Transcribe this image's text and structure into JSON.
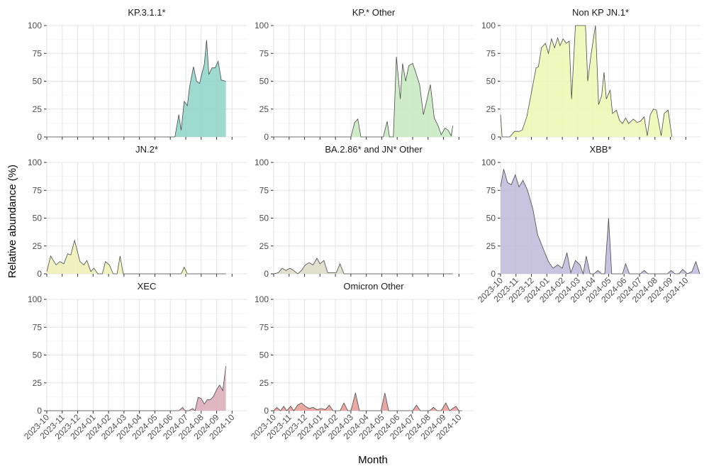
{
  "figure": {
    "ylabel": "Relative abundance (%)",
    "xlabel": "Month"
  },
  "chart_data": {
    "type": "area",
    "facet_layout": "3 columns, 3 rows",
    "ylim": [
      0,
      100
    ],
    "y_ticks": [
      "0",
      "25",
      "50",
      "75",
      "100"
    ],
    "x_ticks": [
      "2023-10",
      "2023-11",
      "2023-12",
      "2024-01",
      "2024-02",
      "2024-03",
      "2024-04",
      "2024-05",
      "2024-06",
      "2024-07",
      "2024-08",
      "2024-09",
      "2024-10"
    ],
    "x_tick_positions": [
      0,
      1,
      2,
      3,
      4,
      5,
      6,
      7,
      8,
      9,
      10,
      11,
      12
    ],
    "xlim": [
      0,
      12.95
    ],
    "grid": true,
    "series": [
      {
        "name": "KP.3.1.1*",
        "color": "#8dd3c7",
        "points": [
          [
            0,
            0
          ],
          [
            8.3,
            0
          ],
          [
            8.55,
            20
          ],
          [
            8.7,
            6
          ],
          [
            8.9,
            32
          ],
          [
            9.1,
            28
          ],
          [
            9.25,
            45
          ],
          [
            9.5,
            63
          ],
          [
            9.7,
            50
          ],
          [
            9.9,
            48
          ],
          [
            10.05,
            57
          ],
          [
            10.2,
            65
          ],
          [
            10.35,
            87
          ],
          [
            10.5,
            56
          ],
          [
            10.7,
            62
          ],
          [
            10.9,
            62
          ],
          [
            11.1,
            68
          ],
          [
            11.3,
            51
          ],
          [
            11.6,
            50
          ]
        ]
      },
      {
        "name": "KP.* Other",
        "color": "#c7e9c0",
        "points": [
          [
            0,
            0
          ],
          [
            5.0,
            0
          ],
          [
            5.25,
            13
          ],
          [
            5.45,
            16
          ],
          [
            5.65,
            0
          ],
          [
            7.1,
            0
          ],
          [
            7.35,
            14
          ],
          [
            7.5,
            0
          ],
          [
            7.75,
            0
          ],
          [
            7.95,
            72
          ],
          [
            8.2,
            34
          ],
          [
            8.35,
            66
          ],
          [
            8.55,
            50
          ],
          [
            8.75,
            64
          ],
          [
            9.0,
            66
          ],
          [
            9.2,
            58
          ],
          [
            9.45,
            47
          ],
          [
            9.7,
            20
          ],
          [
            9.95,
            35
          ],
          [
            10.15,
            47
          ],
          [
            10.4,
            17
          ],
          [
            10.65,
            10
          ],
          [
            10.85,
            2
          ],
          [
            11.1,
            8
          ],
          [
            11.3,
            6
          ],
          [
            11.5,
            1
          ],
          [
            11.6,
            10
          ]
        ]
      },
      {
        "name": "Non KP JN.1*",
        "color": "#edf8b1",
        "points": [
          [
            0,
            20
          ],
          [
            0.1,
            0
          ],
          [
            0.6,
            0
          ],
          [
            0.9,
            5
          ],
          [
            1.2,
            5
          ],
          [
            1.4,
            6
          ],
          [
            1.7,
            18
          ],
          [
            2.0,
            40
          ],
          [
            2.3,
            62
          ],
          [
            2.45,
            63
          ],
          [
            2.65,
            80
          ],
          [
            2.9,
            84
          ],
          [
            3.1,
            75
          ],
          [
            3.3,
            88
          ],
          [
            3.5,
            80
          ],
          [
            3.7,
            89
          ],
          [
            3.85,
            82
          ],
          [
            4.05,
            88
          ],
          [
            4.25,
            84
          ],
          [
            4.45,
            86
          ],
          [
            4.6,
            34
          ],
          [
            4.85,
            100
          ],
          [
            5.5,
            100
          ],
          [
            5.65,
            50
          ],
          [
            5.85,
            73
          ],
          [
            6.15,
            100
          ],
          [
            6.35,
            29
          ],
          [
            6.55,
            37
          ],
          [
            6.7,
            58
          ],
          [
            6.85,
            34
          ],
          [
            7.1,
            42
          ],
          [
            7.25,
            21
          ],
          [
            7.5,
            24
          ],
          [
            7.7,
            15
          ],
          [
            7.9,
            12
          ],
          [
            8.1,
            17
          ],
          [
            8.3,
            12
          ],
          [
            8.6,
            16
          ],
          [
            8.85,
            13
          ],
          [
            9.05,
            14
          ],
          [
            9.3,
            18
          ],
          [
            9.5,
            1
          ],
          [
            9.7,
            20
          ],
          [
            9.9,
            25
          ],
          [
            10.1,
            24
          ],
          [
            10.4,
            1
          ],
          [
            10.6,
            21
          ],
          [
            10.85,
            24
          ],
          [
            11.1,
            0
          ]
        ]
      },
      {
        "name": "JN.2*",
        "color": "#edf1b4",
        "points": [
          [
            0,
            2
          ],
          [
            0.25,
            16
          ],
          [
            0.6,
            8
          ],
          [
            0.85,
            11
          ],
          [
            1.1,
            9
          ],
          [
            1.35,
            18
          ],
          [
            1.55,
            17
          ],
          [
            1.8,
            30
          ],
          [
            2.15,
            11
          ],
          [
            2.4,
            8
          ],
          [
            2.6,
            12
          ],
          [
            2.85,
            2
          ],
          [
            3.05,
            5
          ],
          [
            3.3,
            0
          ],
          [
            3.6,
            0
          ],
          [
            3.8,
            11
          ],
          [
            4.05,
            8
          ],
          [
            4.3,
            0
          ],
          [
            4.55,
            0
          ],
          [
            4.75,
            16
          ],
          [
            4.95,
            0
          ],
          [
            8.7,
            0
          ],
          [
            8.9,
            6
          ],
          [
            9.1,
            0
          ],
          [
            11.6,
            0
          ]
        ]
      },
      {
        "name": "BA.2.86* and JN* Other",
        "color": "#dcdbc6",
        "points": [
          [
            0,
            0
          ],
          [
            0.3,
            1
          ],
          [
            0.55,
            5
          ],
          [
            0.8,
            3
          ],
          [
            1.05,
            5
          ],
          [
            1.3,
            3
          ],
          [
            1.55,
            0
          ],
          [
            1.8,
            3
          ],
          [
            2.05,
            8
          ],
          [
            2.3,
            10
          ],
          [
            2.55,
            8
          ],
          [
            2.8,
            14
          ],
          [
            3.0,
            9
          ],
          [
            3.25,
            12
          ],
          [
            3.5,
            1
          ],
          [
            4.05,
            1
          ],
          [
            4.3,
            9
          ],
          [
            4.55,
            0
          ],
          [
            11.6,
            0
          ]
        ]
      },
      {
        "name": "XBB*",
        "color": "#bebada",
        "points": [
          [
            0,
            78
          ],
          [
            0.2,
            94
          ],
          [
            0.45,
            82
          ],
          [
            0.7,
            80
          ],
          [
            0.95,
            89
          ],
          [
            1.2,
            78
          ],
          [
            1.45,
            84
          ],
          [
            1.75,
            75
          ],
          [
            2.1,
            58
          ],
          [
            2.4,
            35
          ],
          [
            2.75,
            23
          ],
          [
            3.1,
            11
          ],
          [
            3.4,
            5
          ],
          [
            3.7,
            8
          ],
          [
            4.0,
            5
          ],
          [
            4.3,
            19
          ],
          [
            4.55,
            1
          ],
          [
            4.85,
            12
          ],
          [
            5.15,
            8
          ],
          [
            5.35,
            0
          ],
          [
            5.55,
            16
          ],
          [
            5.8,
            0
          ],
          [
            6.05,
            0
          ],
          [
            6.3,
            3
          ],
          [
            6.55,
            0
          ],
          [
            6.75,
            0
          ],
          [
            7.0,
            50
          ],
          [
            7.2,
            0
          ],
          [
            7.9,
            0
          ],
          [
            8.1,
            9
          ],
          [
            8.35,
            0
          ],
          [
            9.05,
            0
          ],
          [
            9.3,
            3
          ],
          [
            9.55,
            0
          ],
          [
            10.8,
            0
          ],
          [
            11.05,
            3
          ],
          [
            11.3,
            0
          ],
          [
            11.55,
            0
          ],
          [
            11.8,
            4
          ],
          [
            12.1,
            0
          ],
          [
            12.4,
            2
          ],
          [
            12.65,
            11
          ],
          [
            12.9,
            0
          ]
        ]
      },
      {
        "name": "XEC",
        "color": "#dca9b8",
        "points": [
          [
            0,
            0
          ],
          [
            8.55,
            0
          ],
          [
            8.8,
            3
          ],
          [
            8.95,
            0
          ],
          [
            9.2,
            0
          ],
          [
            9.45,
            2
          ],
          [
            9.6,
            0
          ],
          [
            9.8,
            12
          ],
          [
            10.0,
            11
          ],
          [
            10.2,
            6
          ],
          [
            10.4,
            10
          ],
          [
            10.6,
            10
          ],
          [
            10.8,
            13
          ],
          [
            11.0,
            19
          ],
          [
            11.2,
            23
          ],
          [
            11.4,
            18
          ],
          [
            11.6,
            40
          ]
        ]
      },
      {
        "name": "Omicron Other",
        "color": "#e89a93",
        "points": [
          [
            0,
            0
          ],
          [
            0.2,
            3
          ],
          [
            0.45,
            0
          ],
          [
            0.65,
            4
          ],
          [
            0.85,
            0
          ],
          [
            1.1,
            4
          ],
          [
            1.3,
            0
          ],
          [
            1.55,
            5
          ],
          [
            1.8,
            7
          ],
          [
            2.05,
            4
          ],
          [
            2.3,
            2
          ],
          [
            2.55,
            3
          ],
          [
            2.8,
            1
          ],
          [
            3.1,
            2
          ],
          [
            3.35,
            1
          ],
          [
            3.6,
            5
          ],
          [
            3.85,
            0
          ],
          [
            4.3,
            0
          ],
          [
            4.55,
            7
          ],
          [
            4.8,
            0
          ],
          [
            5.0,
            0
          ],
          [
            5.3,
            16
          ],
          [
            5.55,
            0
          ],
          [
            6.95,
            0
          ],
          [
            7.2,
            16
          ],
          [
            7.45,
            0
          ],
          [
            9.0,
            0
          ],
          [
            9.25,
            5
          ],
          [
            9.5,
            0
          ],
          [
            10.1,
            0
          ],
          [
            10.35,
            3
          ],
          [
            10.6,
            0
          ],
          [
            10.85,
            0
          ],
          [
            11.15,
            7
          ],
          [
            11.4,
            0
          ],
          [
            11.8,
            4
          ],
          [
            12.0,
            0
          ],
          [
            12.2,
            0
          ]
        ]
      }
    ]
  }
}
